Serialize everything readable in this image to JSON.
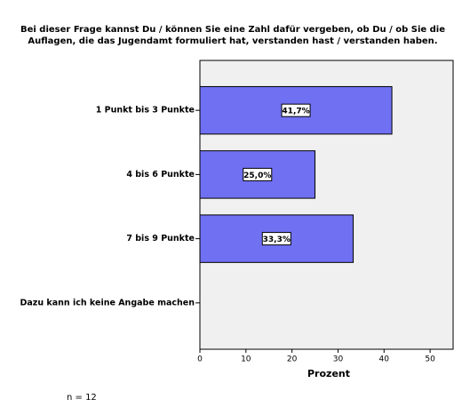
{
  "chart_data": {
    "type": "hbar",
    "title": [
      "Bei dieser Frage kannst Du / können Sie eine Zahl dafür vergeben, ob Du / ob Sie die",
      "Auflagen, die das Jugendamt formuliert hat, verstanden hast / verstanden haben."
    ],
    "categories": [
      "1 Punkt bis 3 Punkte",
      "4 bis 6 Punkte",
      "7 bis 9 Punkte",
      "Dazu kann ich keine Angabe machen"
    ],
    "values": [
      41.7,
      25.0,
      33.3,
      0
    ],
    "value_labels": [
      "41,7%",
      "25,0%",
      "33,3%",
      null
    ],
    "color": "#7070f2",
    "xlim": [
      0,
      55
    ],
    "xticks": [
      0,
      10,
      20,
      30,
      40,
      50
    ],
    "xlabel": "Prozent",
    "note": "n = 12"
  }
}
